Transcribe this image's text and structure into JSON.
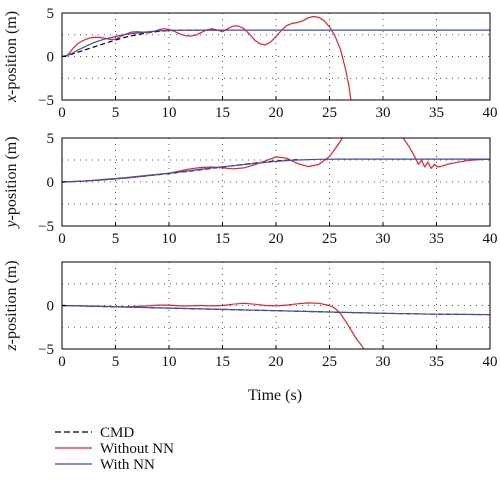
{
  "chart_data": [
    {
      "type": "line",
      "ylabel_var": "x",
      "ylabel_rest": "-position (m)",
      "xlim": [
        0,
        40
      ],
      "ylim": [
        -5,
        5
      ],
      "xticks": [
        "0",
        "5",
        "10",
        "15",
        "20",
        "25",
        "30",
        "35",
        "40"
      ],
      "yticks": [
        "5",
        "0",
        "−5"
      ],
      "grid": "dotted",
      "series": [
        {
          "name": "CMD",
          "color": "#000000",
          "dash": true,
          "x": [
            0,
            1,
            2,
            3,
            4,
            5,
            6,
            7,
            8,
            9,
            10,
            11,
            12,
            13,
            14,
            15
          ],
          "y": [
            0,
            0.3,
            0.7,
            1.1,
            1.5,
            1.9,
            2.25,
            2.5,
            2.72,
            2.88,
            2.98,
            3.02,
            3.03,
            3.02,
            3.02,
            3.02
          ]
        },
        {
          "name": "Without NN",
          "color": "#e8222a",
          "dash": false,
          "x": [
            0,
            0.5,
            1,
            1.5,
            2,
            2.5,
            3,
            3.5,
            4,
            4.5,
            5,
            5.5,
            6,
            6.5,
            7,
            7.5,
            8,
            8.5,
            9,
            9.5,
            10,
            10.5,
            11,
            11.5,
            12,
            12.5,
            13,
            13.5,
            14,
            14.5,
            15,
            15.5,
            16,
            16.5,
            17,
            17.5,
            18,
            18.5,
            19,
            19.5,
            20,
            20.5,
            21,
            21.5,
            22,
            22.5,
            23,
            23.5,
            24,
            24.5,
            25,
            25.5,
            26,
            26.2,
            26.5,
            26.8,
            27
          ],
          "y": [
            0,
            0.1,
            0.9,
            1.5,
            1.85,
            2.1,
            2.2,
            2.2,
            2.1,
            1.95,
            2.0,
            2.3,
            2.6,
            2.8,
            2.85,
            2.8,
            2.75,
            2.85,
            3.05,
            3.2,
            3.1,
            2.9,
            2.6,
            2.4,
            2.35,
            2.45,
            2.75,
            3.05,
            3.2,
            3.05,
            2.85,
            3.2,
            3.5,
            3.5,
            3.2,
            2.6,
            1.9,
            1.45,
            1.35,
            1.65,
            2.3,
            3.0,
            3.55,
            3.8,
            3.9,
            4.1,
            4.45,
            4.6,
            4.5,
            4.1,
            3.4,
            2.4,
            0.9,
            0.0,
            -1.5,
            -3.3,
            -5
          ]
        },
        {
          "name": "With NN",
          "color": "#3a4db8",
          "dash": false,
          "x": [
            0,
            0.5,
            1,
            1.5,
            2,
            2.5,
            3,
            3.5,
            4,
            4.5,
            5,
            5.5,
            6,
            6.5,
            7,
            7.5,
            8,
            8.5,
            9,
            9.5,
            10,
            11,
            12,
            13,
            14,
            15,
            20,
            25,
            30,
            35,
            40
          ],
          "y": [
            0,
            0.1,
            0.4,
            0.75,
            1.05,
            1.35,
            1.6,
            1.82,
            2.0,
            2.15,
            2.3,
            2.45,
            2.55,
            2.63,
            2.7,
            2.77,
            2.83,
            2.9,
            2.95,
            2.98,
            3.0,
            3.02,
            3.03,
            3.03,
            3.03,
            3.03,
            3.03,
            3.03,
            3.03,
            3.03,
            3.03
          ]
        }
      ]
    },
    {
      "type": "line",
      "ylabel_var": "y",
      "ylabel_rest": "-position (m)",
      "xlim": [
        0,
        40
      ],
      "ylim": [
        -5,
        5
      ],
      "xticks": [
        "0",
        "5",
        "10",
        "15",
        "20",
        "25",
        "30",
        "35",
        "40"
      ],
      "yticks": [
        "5",
        "0",
        "−5"
      ],
      "grid": "dotted",
      "series": [
        {
          "name": "CMD",
          "color": "#000000",
          "dash": true,
          "x": [
            0,
            2,
            4,
            6,
            8,
            10,
            12,
            14,
            16,
            18,
            20,
            22
          ],
          "y": [
            0,
            0.1,
            0.25,
            0.45,
            0.7,
            0.95,
            1.25,
            1.55,
            1.85,
            2.15,
            2.4,
            2.55
          ]
        },
        {
          "name": "Without NN",
          "color": "#e8222a",
          "dash": false,
          "x": [
            0,
            2,
            4,
            6,
            8,
            10,
            11,
            12,
            13,
            14,
            15,
            16,
            17,
            18,
            19,
            20,
            21,
            22,
            23,
            24,
            25,
            25.5,
            26,
            26.5,
            27,
            27.5,
            28,
            29,
            30,
            31,
            31.5,
            32,
            32.5,
            33,
            33.3,
            33.6,
            33.9,
            34.2,
            34.5,
            34.8,
            35.1,
            35.5,
            36,
            37,
            38,
            39,
            40
          ],
          "y": [
            0,
            0.1,
            0.25,
            0.45,
            0.7,
            1.0,
            1.25,
            1.5,
            1.65,
            1.7,
            1.6,
            1.5,
            1.6,
            1.95,
            2.4,
            2.85,
            2.7,
            2.1,
            1.75,
            2.0,
            2.9,
            3.7,
            4.6,
            5.6,
            6.4,
            7.0,
            7.3,
            7.4,
            7.2,
            6.4,
            5.6,
            4.8,
            3.9,
            2.8,
            2.0,
            2.45,
            1.7,
            2.25,
            1.55,
            2.0,
            1.7,
            1.8,
            2.0,
            2.25,
            2.45,
            2.55,
            2.6
          ]
        },
        {
          "name": "With NN",
          "color": "#3a4db8",
          "dash": false,
          "x": [
            0,
            2,
            4,
            6,
            8,
            10,
            12,
            14,
            16,
            18,
            20,
            22,
            24,
            26,
            28,
            30,
            35,
            40
          ],
          "y": [
            0,
            0.1,
            0.3,
            0.5,
            0.75,
            1.0,
            1.3,
            1.6,
            1.85,
            2.1,
            2.35,
            2.5,
            2.58,
            2.6,
            2.6,
            2.6,
            2.6,
            2.6
          ]
        }
      ]
    },
    {
      "type": "line",
      "ylabel_var": "z",
      "ylabel_rest": "-position (m)",
      "xlim": [
        0,
        40
      ],
      "ylim": [
        -5,
        5
      ],
      "xticks": [
        "0",
        "5",
        "10",
        "15",
        "20",
        "25",
        "30",
        "35",
        "40"
      ],
      "yticks": [
        "0",
        "−5"
      ],
      "grid": "dotted",
      "series": [
        {
          "name": "CMD",
          "color": "#000000",
          "dash": true,
          "x": [
            0,
            5,
            10,
            15,
            20,
            25,
            30,
            35,
            40
          ],
          "y": [
            0,
            -0.15,
            -0.3,
            -0.45,
            -0.6,
            -0.75,
            -0.9,
            -1.0,
            -1.05
          ]
        },
        {
          "name": "Without NN",
          "color": "#e8222a",
          "dash": false,
          "x": [
            0,
            2,
            4,
            6,
            8,
            9,
            10,
            11,
            12,
            13,
            14,
            15,
            16,
            17,
            18,
            19,
            20,
            21,
            22,
            23,
            24,
            25,
            25.5,
            26,
            26.5,
            27,
            27.5,
            28,
            28.2
          ],
          "y": [
            0,
            -0.05,
            -0.1,
            -0.15,
            -0.05,
            0.05,
            0.05,
            -0.05,
            -0.05,
            0.0,
            -0.05,
            0.0,
            0.15,
            0.25,
            0.15,
            0.0,
            -0.05,
            0.05,
            0.2,
            0.3,
            0.25,
            0.0,
            -0.3,
            -0.9,
            -1.8,
            -2.8,
            -3.8,
            -4.6,
            -5
          ]
        },
        {
          "name": "With NN",
          "color": "#3a4db8",
          "dash": false,
          "x": [
            0,
            5,
            10,
            15,
            20,
            25,
            30,
            35,
            40
          ],
          "y": [
            0,
            -0.15,
            -0.3,
            -0.45,
            -0.6,
            -0.75,
            -0.9,
            -1.0,
            -1.05
          ]
        }
      ]
    }
  ],
  "xlabel": "Time (s)",
  "legend": [
    {
      "label": "CMD",
      "color": "#000000",
      "dash": true
    },
    {
      "label": "Without NN",
      "color": "#e8222a",
      "dash": false
    },
    {
      "label": "With NN",
      "color": "#3a4db8",
      "dash": false
    }
  ]
}
